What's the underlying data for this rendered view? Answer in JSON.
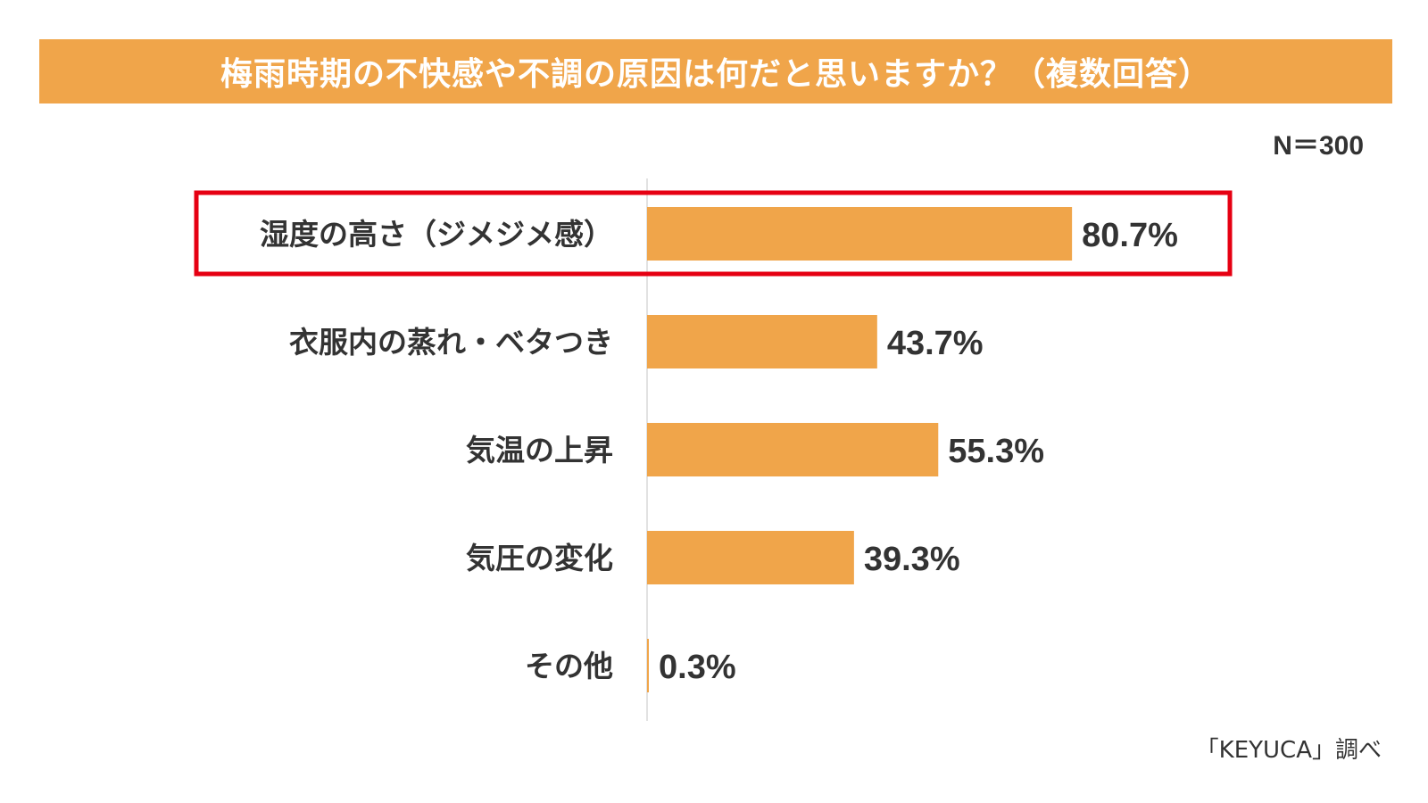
{
  "title": "梅雨時期の不快感や不調の原因は何だと思いますか？（複数回答）",
  "sample_size": "N＝300",
  "source": "「KEYUCA」調べ",
  "colors": {
    "bar": "#f0a54a",
    "title_background": "#f0a54a",
    "highlight_border": "#e60012",
    "axis_line": "#d9d9d9"
  },
  "chart_data": {
    "type": "bar",
    "orientation": "horizontal",
    "categories": [
      "湿度の高さ（ジメジメ感）",
      "衣服内の蒸れ・ベタつき",
      "気温の上昇",
      "気圧の変化",
      "その他"
    ],
    "values": [
      80.7,
      43.7,
      55.3,
      39.3,
      0.3
    ],
    "value_labels": [
      "80.7%",
      "43.7%",
      "55.3%",
      "39.3%",
      "0.3%"
    ],
    "unit": "%",
    "highlighted_category": "湿度の高さ（ジメジメ感）",
    "grid": false,
    "legend": "none"
  }
}
